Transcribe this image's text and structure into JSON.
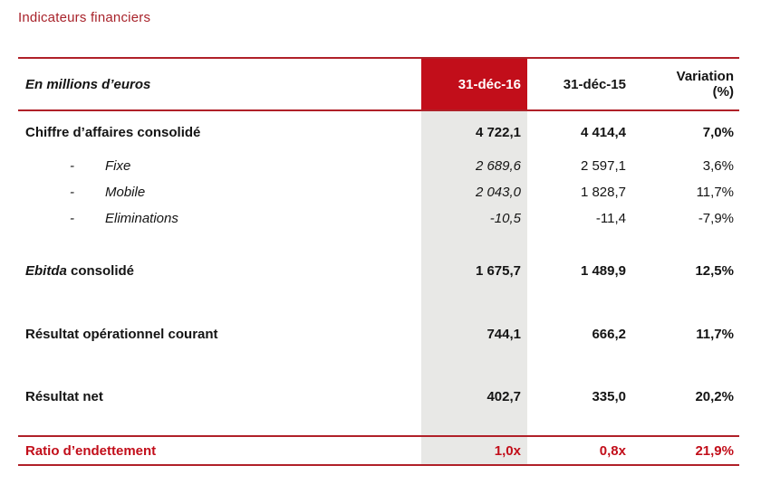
{
  "title": "Indicateurs financiers",
  "colors": {
    "brand_red": "#C20E1A",
    "line_red": "#B02028",
    "title_red": "#A8232B",
    "band_gray": "#E8E8E6",
    "header_text_on_red": "#FFFFFF"
  },
  "table": {
    "header": {
      "unit": "En millions d’euros",
      "col_2016": "31-déc-16",
      "col_2015": "31-déc-15",
      "col_variation_line1": "Variation",
      "col_variation_line2": "(%)"
    },
    "rows": [
      {
        "label": "Chiffre d’affaires consolidé",
        "v2016": "4 722,1",
        "v2015": "4 414,4",
        "variation": "7,0%"
      },
      {
        "dash": "-",
        "label": "Fixe",
        "v2016": "2 689,6",
        "v2015": "2 597,1",
        "variation": "3,6%"
      },
      {
        "dash": "-",
        "label": "Mobile",
        "v2016": "2 043,0",
        "v2015": "1 828,7",
        "variation": "11,7%"
      },
      {
        "dash": "-",
        "label": "Eliminations",
        "v2016": "-10,5",
        "v2015": "-11,4",
        "variation": "-7,9%"
      },
      {
        "label_italic": "Ebitda",
        "label_rest": " consolidé",
        "v2016": "1 675,7",
        "v2015": "1 489,9",
        "variation": "12,5%"
      },
      {
        "label": "Résultat opérationnel courant",
        "v2016": "744,1",
        "v2015": "666,2",
        "variation": "11,7%"
      },
      {
        "label": "Résultat net",
        "v2016": "402,7",
        "v2015": "335,0",
        "variation": "20,2%"
      },
      {
        "label": "Ratio d’endettement",
        "v2016": "1,0x",
        "v2015": "0,8x",
        "variation": "21,9%"
      }
    ]
  }
}
